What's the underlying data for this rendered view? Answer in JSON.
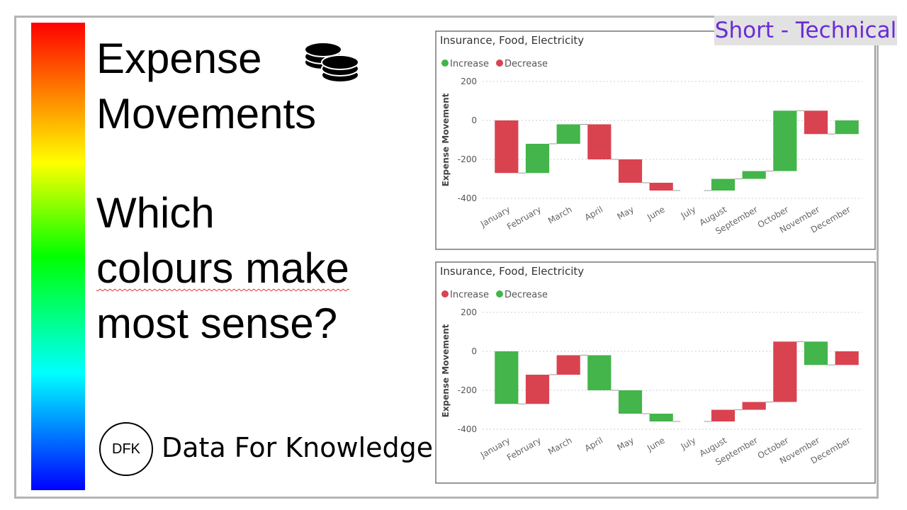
{
  "tag": "Short - Technical",
  "title": [
    "Expense",
    "Movements"
  ],
  "question": [
    "Which",
    "colours make",
    "most sense?"
  ],
  "logo": {
    "mark": "DFK",
    "name": "Data For Knowledge"
  },
  "chart_data": [
    {
      "type": "waterfall",
      "title": "Insurance, Food, Electricity",
      "legend": [
        {
          "name": "Increase",
          "color": "#43b54a"
        },
        {
          "name": "Decrease",
          "color": "#d9434f"
        }
      ],
      "categories": [
        "January",
        "February",
        "March",
        "April",
        "May",
        "June",
        "July",
        "August",
        "September",
        "October",
        "November",
        "December"
      ],
      "values": [
        -270,
        150,
        100,
        -180,
        -120,
        -40,
        0,
        60,
        40,
        310,
        -120,
        70
      ],
      "y_label": "Expense Movement",
      "ylim": [
        -400,
        200
      ],
      "yticks": [
        -400,
        -200,
        0,
        200
      ],
      "grid": true
    },
    {
      "type": "waterfall",
      "title": "Insurance, Food, Electricity",
      "legend": [
        {
          "name": "Increase",
          "color": "#d9434f"
        },
        {
          "name": "Decrease",
          "color": "#43b54a"
        }
      ],
      "categories": [
        "January",
        "February",
        "March",
        "April",
        "May",
        "June",
        "July",
        "August",
        "September",
        "October",
        "November",
        "December"
      ],
      "values": [
        -270,
        150,
        100,
        -180,
        -120,
        -40,
        0,
        60,
        40,
        310,
        -120,
        70
      ],
      "y_label": "Expense Movement",
      "ylim": [
        -400,
        200
      ],
      "yticks": [
        -400,
        -200,
        0,
        200
      ],
      "grid": true
    }
  ]
}
